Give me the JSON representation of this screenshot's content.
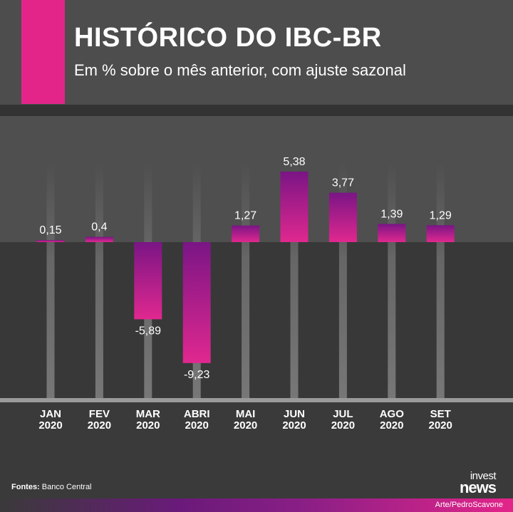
{
  "header": {
    "title": "HISTÓRICO DO IBC-BR",
    "subtitle": "Em % sobre o mês anterior, com ajuste sazonal"
  },
  "footer": {
    "source_label": "Fontes:",
    "source_value": "Banco Central",
    "brand_top": "invest",
    "brand_bottom": "news",
    "credit": "Arte/PedroScavone"
  },
  "colors": {
    "accent": "#e3258a",
    "bar_top": "#7a1585",
    "bar_bottom": "#e0288f",
    "background": "#3a3a3a"
  },
  "chart_data": {
    "type": "bar",
    "categories": [
      "JAN 2020",
      "FEV 2020",
      "MAR 2020",
      "ABRI 2020",
      "MAI 2020",
      "JUN 2020",
      "JUL 2020",
      "AGO 2020",
      "SET 2020"
    ],
    "category_lines": [
      [
        "JAN",
        "2020"
      ],
      [
        "FEV",
        "2020"
      ],
      [
        "MAR",
        "2020"
      ],
      [
        "ABRI",
        "2020"
      ],
      [
        "MAI",
        "2020"
      ],
      [
        "JUN",
        "2020"
      ],
      [
        "JUL",
        "2020"
      ],
      [
        "AGO",
        "2020"
      ],
      [
        "SET",
        "2020"
      ]
    ],
    "values": [
      0.15,
      0.4,
      -5.89,
      -9.23,
      1.27,
      5.38,
      3.77,
      1.39,
      1.29
    ],
    "value_labels": [
      "0,15",
      "0,4",
      "-5,89",
      "-9,23",
      "1,27",
      "5,38",
      "3,77",
      "1,39",
      "1,29"
    ],
    "title": "HISTÓRICO DO IBC-BR",
    "subtitle": "Em % sobre o mês anterior, com ajuste sazonal",
    "xlabel": "",
    "ylabel": "",
    "grid": false,
    "legend": "none"
  }
}
